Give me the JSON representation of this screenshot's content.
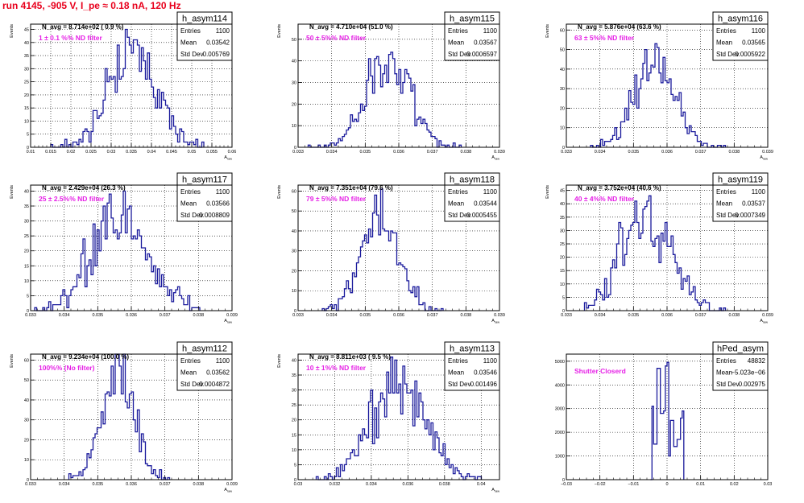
{
  "page": {
    "title": "run 4145,  -905 V, I_pe ≈ 0.18 nA, 120 Hz"
  },
  "colors": {
    "histogram": "#1a1a9c",
    "annotation": "#e620e6",
    "title": "#e8001c",
    "frame": "#000000"
  },
  "chart_data": [
    {
      "type": "histogram",
      "name": "h_asym114",
      "stats": {
        "Entries": "1100",
        "Mean": "0.03542",
        "Std Dev": "0.005769"
      },
      "navg": "N_avg = 8.714e+02 ( 0.9 %)",
      "filter": "1 ± 0.1 %% ND filter",
      "ylabel": "Events",
      "xlabel": "A_raw",
      "xlim": [
        0.01,
        0.06
      ],
      "ylim": [
        0,
        47
      ],
      "xticks": [
        0.01,
        0.015,
        0.02,
        0.025,
        0.03,
        0.035,
        0.04,
        0.045,
        0.05,
        0.055,
        0.06
      ],
      "xtick_labels": [
        "0.01",
        "0.015",
        "0.02",
        "0.025",
        "0.03",
        "0.035",
        "0.04",
        "0.045",
        "0.05",
        "0.055",
        "0.06"
      ],
      "yticks": [
        0,
        5,
        10,
        15,
        20,
        25,
        30,
        35,
        40,
        45
      ],
      "mean": 0.03542,
      "sigma": 0.005769,
      "entries": 1100,
      "bins": 100
    },
    {
      "type": "histogram",
      "name": "h_asym115",
      "stats": {
        "Entries": "1100",
        "Mean": "0.03567",
        "Std Dev": "0.0006597"
      },
      "navg": "N_avg = 4.710e+04 (51.0 %)",
      "filter": "50 ± 5%% ND filter",
      "ylabel": "Events",
      "xlabel": "A_raw",
      "xlim": [
        0.033,
        0.039
      ],
      "ylim": [
        0,
        57
      ],
      "xticks": [
        0.033,
        0.034,
        0.035,
        0.036,
        0.037,
        0.038,
        0.039
      ],
      "xtick_labels": [
        "0.033",
        "0.034",
        "0.035",
        "0.036",
        "0.037",
        "0.038",
        "0.039"
      ],
      "yticks": [
        0,
        10,
        20,
        30,
        40,
        50
      ],
      "mean": 0.03567,
      "sigma": 0.0006597,
      "entries": 1100,
      "bins": 100
    },
    {
      "type": "histogram",
      "name": "h_asym116",
      "stats": {
        "Entries": "1100",
        "Mean": "0.03565",
        "Std Dev": "0.0005922"
      },
      "navg": "N_avg = 5.876e+04 (63.6 %)",
      "filter": "63 ± 5%% ND filter",
      "ylabel": "Events",
      "xlabel": "A_raw",
      "xlim": [
        0.033,
        0.039
      ],
      "ylim": [
        0,
        63
      ],
      "xticks": [
        0.033,
        0.034,
        0.035,
        0.036,
        0.037,
        0.038,
        0.039
      ],
      "xtick_labels": [
        "0.033",
        "0.034",
        "0.035",
        "0.036",
        "0.037",
        "0.038",
        "0.039"
      ],
      "yticks": [
        0,
        10,
        20,
        30,
        40,
        50,
        60
      ],
      "mean": 0.03565,
      "sigma": 0.0005922,
      "entries": 1100,
      "bins": 100
    },
    {
      "type": "histogram",
      "name": "h_asym117",
      "stats": {
        "Entries": "1100",
        "Mean": "0.03566",
        "Std Dev": "0.0008809"
      },
      "navg": "N_avg = 2.429e+04 (26.3 %)",
      "filter": "25 ± 2.5%% ND filter",
      "ylabel": "Events",
      "xlabel": "A_raw",
      "xlim": [
        0.033,
        0.039
      ],
      "ylim": [
        0,
        42
      ],
      "xticks": [
        0.033,
        0.034,
        0.035,
        0.036,
        0.037,
        0.038,
        0.039
      ],
      "xtick_labels": [
        "0.033",
        "0.034",
        "0.035",
        "0.036",
        "0.037",
        "0.038",
        "0.039"
      ],
      "yticks": [
        0,
        5,
        10,
        15,
        20,
        25,
        30,
        35,
        40
      ],
      "mean": 0.03566,
      "sigma": 0.0008809,
      "entries": 1100,
      "bins": 100
    },
    {
      "type": "histogram",
      "name": "h_asym118",
      "stats": {
        "Entries": "1100",
        "Mean": "0.03544",
        "Std Dev": "0.0005455"
      },
      "navg": "N_avg = 7.351e+04 (79.6 %)",
      "filter": "79 ± 5%% ND filter",
      "ylabel": "Events",
      "xlabel": "A_raw",
      "xlim": [
        0.033,
        0.039
      ],
      "ylim": [
        0,
        63
      ],
      "xticks": [
        0.033,
        0.034,
        0.035,
        0.036,
        0.037,
        0.038,
        0.039
      ],
      "xtick_labels": [
        "0.033",
        "0.034",
        "0.035",
        "0.036",
        "0.037",
        "0.038",
        "0.039"
      ],
      "yticks": [
        0,
        10,
        20,
        30,
        40,
        50,
        60
      ],
      "mean": 0.03544,
      "sigma": 0.0005455,
      "entries": 1100,
      "bins": 100
    },
    {
      "type": "histogram",
      "name": "h_asym119",
      "stats": {
        "Entries": "1100",
        "Mean": "0.03537",
        "Std Dev": "0.0007349"
      },
      "navg": "N_avg = 3.752e+04 (40.6 %)",
      "filter": "40 ± 4%% ND filter",
      "ylabel": "Events",
      "xlabel": "A_raw",
      "xlim": [
        0.033,
        0.039
      ],
      "ylim": [
        0,
        47
      ],
      "xticks": [
        0.033,
        0.034,
        0.035,
        0.036,
        0.037,
        0.038,
        0.039
      ],
      "xtick_labels": [
        "0.033",
        "0.034",
        "0.035",
        "0.036",
        "0.037",
        "0.038",
        "0.039"
      ],
      "yticks": [
        0,
        5,
        10,
        15,
        20,
        25,
        30,
        35,
        40,
        45
      ],
      "mean": 0.03537,
      "sigma": 0.0007349,
      "entries": 1100,
      "bins": 100
    },
    {
      "type": "histogram",
      "name": "h_asym112",
      "stats": {
        "Entries": "1100",
        "Mean": "0.03562",
        "Std Dev": "0.0004872"
      },
      "navg": "N_avg = 9.234e+04 (100.0 %)",
      "filter": "100%% (No filter)",
      "ylabel": "Events",
      "xlabel": "A_raw",
      "xlim": [
        0.033,
        0.039
      ],
      "ylim": [
        0,
        63
      ],
      "xticks": [
        0.033,
        0.034,
        0.035,
        0.036,
        0.037,
        0.038,
        0.039
      ],
      "xtick_labels": [
        "0.033",
        "0.034",
        "0.035",
        "0.036",
        "0.037",
        "0.038",
        "0.039"
      ],
      "yticks": [
        0,
        10,
        20,
        30,
        40,
        50,
        60
      ],
      "mean": 0.03562,
      "sigma": 0.0004872,
      "entries": 1100,
      "bins": 100
    },
    {
      "type": "histogram",
      "name": "h_asym113",
      "stats": {
        "Entries": "1100",
        "Mean": "0.03546",
        "Std Dev": "0.001496"
      },
      "navg": "N_avg = 8.811e+03 ( 9.5 %)",
      "filter": "10 ± 1%% ND filter",
      "ylabel": "Events",
      "xlabel": "A_raw",
      "xlim": [
        0.03,
        0.041
      ],
      "ylim": [
        0,
        42
      ],
      "xticks": [
        0.03,
        0.032,
        0.034,
        0.036,
        0.038,
        0.04
      ],
      "xtick_labels": [
        "0.03",
        "0.032",
        "0.034",
        "0.036",
        "0.038",
        "0.04"
      ],
      "yticks": [
        0,
        5,
        10,
        15,
        20,
        25,
        30,
        35,
        40
      ],
      "mean": 0.03546,
      "sigma": 0.001496,
      "entries": 1100,
      "bins": 100
    },
    {
      "type": "histogram",
      "name": "hPed_asym",
      "stats": {
        "Entries": "48832",
        "Mean": "−5.023e−06",
        "Std Dev": "0.002975"
      },
      "navg": "",
      "filter": "Shutter Closerd",
      "ylabel": "",
      "xlabel": "",
      "xlim": [
        -0.03,
        0.03
      ],
      "ylim": [
        0,
        5300
      ],
      "xticks": [
        -0.03,
        -0.02,
        -0.01,
        0,
        0.01,
        0.02,
        0.03
      ],
      "xtick_labels": [
        "−0.03",
        "−0.02",
        "−0.01",
        "0",
        "0.01",
        "0.02",
        "0.03"
      ],
      "yticks": [
        0,
        1000,
        2000,
        3000,
        4000,
        5000
      ],
      "pedestal_bins": [
        {
          "x": -0.005,
          "y": 0
        },
        {
          "x": -0.0045,
          "y": 3100
        },
        {
          "x": -0.004,
          "y": 1500
        },
        {
          "x": -0.0035,
          "y": 1500
        },
        {
          "x": -0.003,
          "y": 4700
        },
        {
          "x": -0.0025,
          "y": 4700
        },
        {
          "x": -0.002,
          "y": 2800
        },
        {
          "x": -0.0015,
          "y": 2800
        },
        {
          "x": -0.001,
          "y": 2900
        },
        {
          "x": -0.0005,
          "y": 4800
        },
        {
          "x": 0.0,
          "y": 4950
        },
        {
          "x": 0.0005,
          "y": 1000
        },
        {
          "x": 0.001,
          "y": 2500
        },
        {
          "x": 0.0015,
          "y": 2500
        },
        {
          "x": 0.002,
          "y": 1400
        },
        {
          "x": 0.0025,
          "y": 1400
        },
        {
          "x": 0.003,
          "y": 1700
        },
        {
          "x": 0.0035,
          "y": 1700
        },
        {
          "x": 0.004,
          "y": 2600
        },
        {
          "x": 0.0045,
          "y": 2900
        },
        {
          "x": 0.005,
          "y": 0
        }
      ]
    }
  ]
}
